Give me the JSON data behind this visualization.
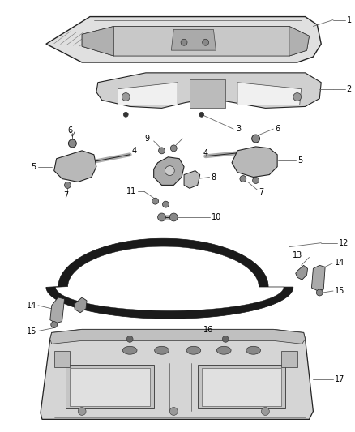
{
  "background_color": "#ffffff",
  "fig_width": 4.38,
  "fig_height": 5.33,
  "dpi": 100,
  "line_color": "#555555",
  "label_fontsize": 7.0
}
